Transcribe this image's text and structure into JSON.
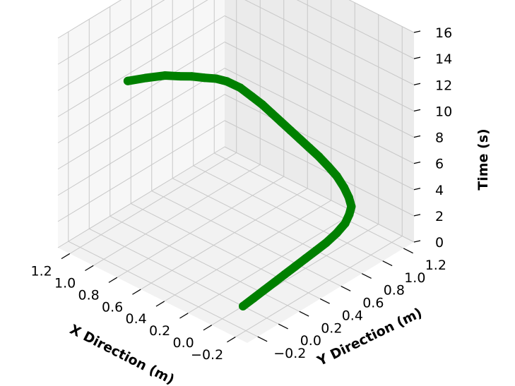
{
  "chart_data": {
    "type": "line3d",
    "title": "",
    "xlabel": "X Direction (m)",
    "ylabel": "Y Direction (m)",
    "zlabel": "Time (s)",
    "xlim": [
      -0.3,
      1.3
    ],
    "ylim": [
      -0.3,
      1.3
    ],
    "zlim": [
      0,
      16
    ],
    "x_ticks": [
      "−0.2",
      "0.0",
      "0.2",
      "0.4",
      "0.6",
      "0.8",
      "1.0",
      "1.2"
    ],
    "y_ticks": [
      "−0.2",
      "0.0",
      "0.2",
      "0.4",
      "0.6",
      "0.8",
      "1.0",
      "1.2"
    ],
    "z_ticks": [
      "0",
      "2",
      "4",
      "6",
      "8",
      "10",
      "12",
      "14",
      "16"
    ],
    "grid": true,
    "series_color": "#008000",
    "x": [
      0.0,
      0.0,
      0.0,
      0.0,
      0.0,
      0.0,
      0.0,
      0.0,
      0.0,
      0.0,
      0.0,
      0.0,
      0.0,
      0.03,
      0.08,
      0.15,
      0.22,
      0.3,
      0.38,
      0.46,
      0.54,
      0.62,
      0.7,
      0.78,
      0.86,
      0.94,
      1.0,
      1.02,
      1.03,
      1.05,
      1.07,
      1.1,
      1.13,
      1.15
    ],
    "y": [
      0.0,
      0.1,
      0.2,
      0.3,
      0.4,
      0.5,
      0.6,
      0.7,
      0.8,
      0.9,
      0.98,
      1.02,
      1.04,
      1.05,
      1.06,
      1.07,
      1.07,
      1.07,
      1.07,
      1.07,
      1.07,
      1.07,
      1.07,
      1.07,
      1.06,
      1.04,
      0.98,
      0.9,
      0.8,
      0.7,
      0.6,
      0.5,
      0.35,
      0.2
    ],
    "z": [
      0.0,
      0.12,
      0.25,
      0.37,
      0.5,
      0.62,
      0.75,
      0.87,
      1.0,
      1.25,
      1.6,
      2.1,
      2.6,
      3.1,
      3.6,
      4.1,
      4.5,
      4.9,
      5.2,
      5.5,
      5.8,
      6.1,
      6.4,
      6.7,
      7.0,
      7.4,
      7.9,
      8.4,
      8.9,
      9.4,
      9.8,
      10.2,
      10.6,
      11.0
    ]
  }
}
